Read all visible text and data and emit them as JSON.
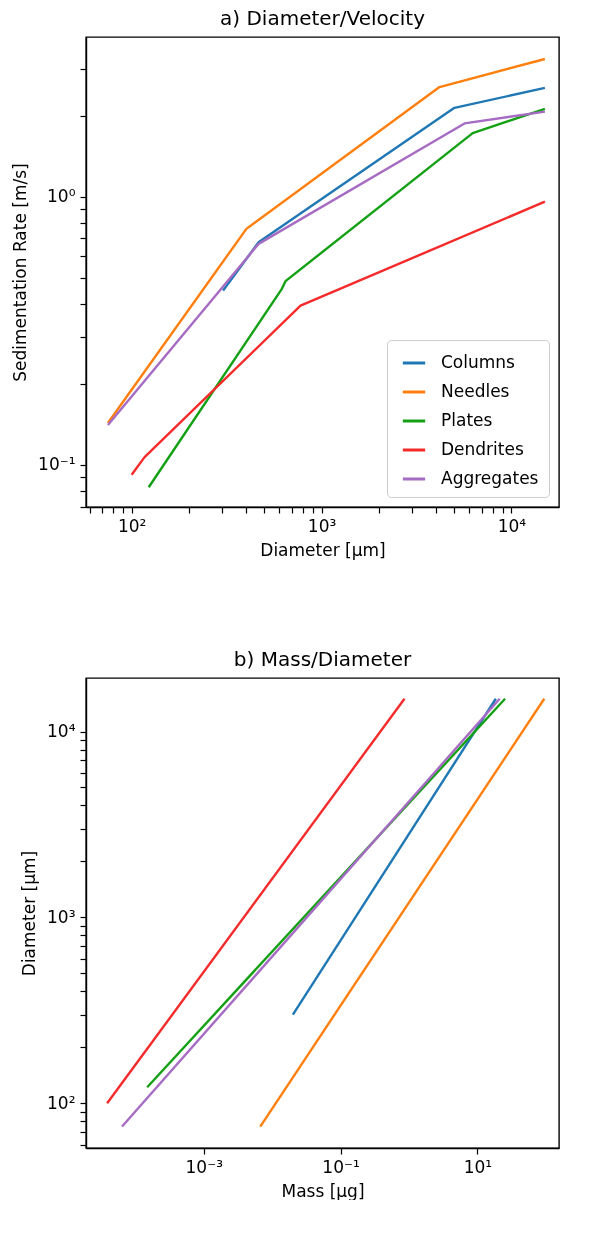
{
  "chart_data": [
    {
      "type": "line",
      "title": "a) Diameter/Velocity",
      "xlabel": "Diameter [μm]",
      "ylabel": "Sedimentation Rate [m/s]",
      "log": "xy",
      "grid": false,
      "legend": "bottom right",
      "xlim": [
        57.5,
        17800
      ],
      "ylim": [
        0.0697,
        3.95
      ],
      "xticks": [
        {
          "value": 60,
          "label": null
        },
        {
          "value": 70,
          "label": null
        },
        {
          "value": 80,
          "label": null
        },
        {
          "value": 90,
          "label": null
        },
        {
          "value": 100,
          "label": "10²"
        },
        {
          "value": 200,
          "label": null
        },
        {
          "value": 300,
          "label": null
        },
        {
          "value": 400,
          "label": null
        },
        {
          "value": 500,
          "label": null
        },
        {
          "value": 600,
          "label": null
        },
        {
          "value": 700,
          "label": null
        },
        {
          "value": 800,
          "label": null
        },
        {
          "value": 900,
          "label": null
        },
        {
          "value": 1000,
          "label": "10³"
        },
        {
          "value": 2000,
          "label": null
        },
        {
          "value": 3000,
          "label": null
        },
        {
          "value": 4000,
          "label": null
        },
        {
          "value": 5000,
          "label": null
        },
        {
          "value": 6000,
          "label": null
        },
        {
          "value": 7000,
          "label": null
        },
        {
          "value": 8000,
          "label": null
        },
        {
          "value": 9000,
          "label": null
        },
        {
          "value": 10000,
          "label": "10⁴"
        }
      ],
      "yticks": [
        {
          "value": 0.07,
          "label": null
        },
        {
          "value": 0.08,
          "label": null
        },
        {
          "value": 0.09,
          "label": null
        },
        {
          "value": 0.1,
          "label": "10⁻¹"
        },
        {
          "value": 0.2,
          "label": null
        },
        {
          "value": 0.3,
          "label": null
        },
        {
          "value": 0.4,
          "label": null
        },
        {
          "value": 0.5,
          "label": null
        },
        {
          "value": 0.6,
          "label": null
        },
        {
          "value": 0.7,
          "label": null
        },
        {
          "value": 0.8,
          "label": null
        },
        {
          "value": 0.9,
          "label": null
        },
        {
          "value": 1,
          "label": "10⁰"
        },
        {
          "value": 2,
          "label": null
        },
        {
          "value": 3,
          "label": null
        }
      ],
      "series": [
        {
          "name": "Columns",
          "color": "#1f77b4",
          "x": [
            303,
            466,
            5010,
            15000
          ],
          "values": [
            0.447,
            0.677,
            2.15,
            2.55
          ]
        },
        {
          "name": "Needles",
          "color": "#ff7f0e",
          "x": [
            75,
            402,
            4180,
            15000
          ],
          "values": [
            0.1435,
            0.76,
            2.57,
            3.27
          ]
        },
        {
          "name": "Plates",
          "color": "#14a014",
          "x": [
            123,
            618,
            646,
            6250,
            15000
          ],
          "values": [
            0.0826,
            0.454,
            0.485,
            1.73,
            2.13
          ]
        },
        {
          "name": "Dendrites",
          "color": "#f52a2a",
          "x": [
            100,
            117,
            775,
            15000
          ],
          "values": [
            0.092,
            0.107,
            0.393,
            0.96
          ]
        },
        {
          "name": "Aggregates",
          "color": "#a66bc2",
          "x": [
            75,
            466,
            5660,
            15000
          ],
          "values": [
            0.141,
            0.668,
            1.88,
            2.08
          ]
        }
      ]
    },
    {
      "type": "line",
      "title": "b) Mass/Diameter",
      "xlabel": "Mass [μg]",
      "ylabel": "Diameter [μm]",
      "log": "xy",
      "grid": false,
      "xlim": [
        1.9e-05,
        156
      ],
      "ylim": [
        57.5,
        19400
      ],
      "xticks": [
        {
          "value": 0.001,
          "label": "10⁻³"
        },
        {
          "value": 0.1,
          "label": "10⁻¹"
        },
        {
          "value": 10,
          "label": "10¹"
        }
      ],
      "yticks": [
        {
          "value": 60,
          "label": null
        },
        {
          "value": 70,
          "label": null
        },
        {
          "value": 80,
          "label": null
        },
        {
          "value": 90,
          "label": null
        },
        {
          "value": 100,
          "label": "10²"
        },
        {
          "value": 200,
          "label": null
        },
        {
          "value": 300,
          "label": null
        },
        {
          "value": 400,
          "label": null
        },
        {
          "value": 500,
          "label": null
        },
        {
          "value": 600,
          "label": null
        },
        {
          "value": 700,
          "label": null
        },
        {
          "value": 800,
          "label": null
        },
        {
          "value": 900,
          "label": null
        },
        {
          "value": 1000,
          "label": "10³"
        },
        {
          "value": 2000,
          "label": null
        },
        {
          "value": 3000,
          "label": null
        },
        {
          "value": 4000,
          "label": null
        },
        {
          "value": 5000,
          "label": null
        },
        {
          "value": 6000,
          "label": null
        },
        {
          "value": 7000,
          "label": null
        },
        {
          "value": 8000,
          "label": null
        },
        {
          "value": 9000,
          "label": null
        },
        {
          "value": 10000,
          "label": "10⁴"
        }
      ],
      "series": [
        {
          "color": "#1f77b4",
          "x": [
            0.0201,
            18.6
          ],
          "values": [
            300,
            15000
          ]
        },
        {
          "color": "#ff7f0e",
          "x": [
            0.0067,
            95
          ],
          "values": [
            75,
            15000
          ]
        },
        {
          "color": "#14a014",
          "x": [
            0.000149,
            25.4
          ],
          "values": [
            122,
            15000
          ]
        },
        {
          "color": "#f52a2a",
          "x": [
            3.87e-05,
            0.86
          ],
          "values": [
            100,
            15000
          ]
        },
        {
          "color": "#a66bc2",
          "x": [
            6.4e-05,
            21.2
          ],
          "values": [
            75,
            15000
          ]
        }
      ]
    }
  ]
}
